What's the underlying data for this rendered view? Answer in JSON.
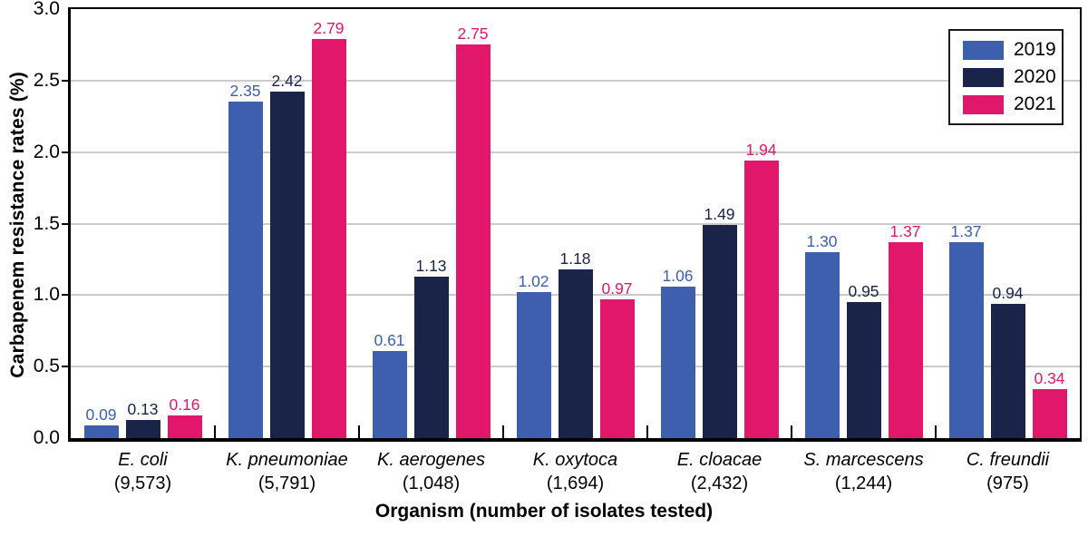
{
  "chart_data": {
    "type": "bar",
    "title": "",
    "xlabel": "Organism (number of isolates tested)",
    "ylabel": "Carbapenem resistance rates (%)",
    "ylim": [
      0,
      3.0
    ],
    "ytick_labels": [
      "0.0",
      "0.5",
      "1.0",
      "1.5",
      "2.0",
      "2.5",
      "3.0"
    ],
    "grid": "horizontal",
    "gridline_values": [
      0.5,
      1.0,
      1.5,
      2.0,
      2.5
    ],
    "legend_position": "top-right",
    "value_label_decimals": 2,
    "categories": [
      "E. coli",
      "K. pneumoniae",
      "K. aerogenes",
      "K. oxytoca",
      "E. cloacae",
      "S. marcescens",
      "C. freundii"
    ],
    "category_counts": [
      "(9,573)",
      "(5,791)",
      "(1,048)",
      "(1,694)",
      "(2,432)",
      "(1,244)",
      "(975)"
    ],
    "series": [
      {
        "name": "2019",
        "color": "#3e5fae",
        "values": [
          0.09,
          2.35,
          0.61,
          1.02,
          1.06,
          1.3,
          1.37
        ]
      },
      {
        "name": "2020",
        "color": "#1a2348",
        "values": [
          0.13,
          2.42,
          1.13,
          1.18,
          1.49,
          0.95,
          0.94
        ]
      },
      {
        "name": "2021",
        "color": "#e0176b",
        "values": [
          0.16,
          2.79,
          2.75,
          0.97,
          1.94,
          1.37,
          0.34
        ]
      }
    ]
  },
  "colors": {
    "axis": "#000000",
    "gridline": "#cbcbcb",
    "background": "#ffffff",
    "legend_border": "#1a1a1a"
  }
}
